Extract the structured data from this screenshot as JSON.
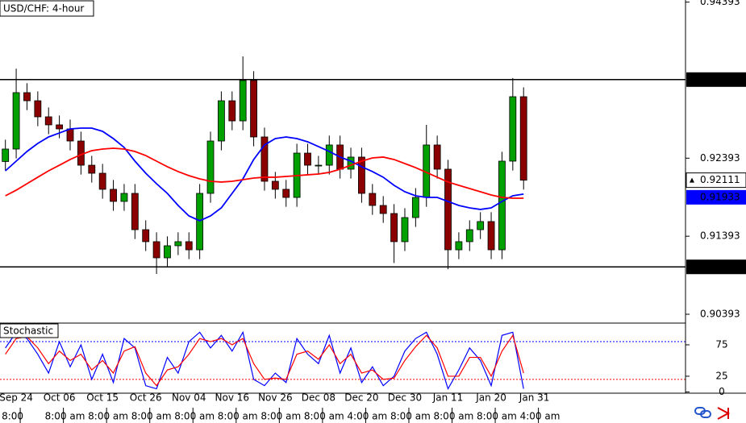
{
  "chart_data": [
    {
      "type": "candlestick",
      "title": "USD/CHF: 4-hour",
      "xlim": [
        -0.5,
        63
      ],
      "ylim": [
        0.9029,
        0.9442
      ],
      "yticks": [
        0.90393,
        0.91393,
        0.92393,
        0.94393
      ],
      "levels": [
        {
          "value": 0.934,
          "label": "0.93400"
        },
        {
          "value": 0.91,
          "label": "0.91000"
        }
      ],
      "colors": {
        "up": "#00a000",
        "down": "#8b0000",
        "outline": "#000000"
      },
      "ohlc": {
        "open": [
          0.9235,
          0.9251,
          0.93233,
          0.93129,
          0.92923,
          0.9282,
          0.92768,
          0.92613,
          0.92303,
          0.922,
          0.91994,
          0.91839,
          0.91942,
          0.91477,
          0.91323,
          0.91116,
          0.91271,
          0.91323,
          0.91219,
          0.91942,
          0.92613,
          0.93129,
          0.92871,
          0.93388,
          0.92665,
          0.92097,
          0.91994,
          0.9189,
          0.92458,
          0.92303,
          0.92303,
          0.92562,
          0.92252,
          0.92407,
          0.91942,
          0.91787,
          0.91684,
          0.91323,
          0.91632,
          0.9189,
          0.92562,
          0.92252,
          0.91219,
          0.91323,
          0.91477,
          0.91581,
          0.91219,
          0.92355,
          0.93181
        ],
        "high": [
          0.9263,
          0.9354,
          0.93353,
          0.93249,
          0.93043,
          0.9294,
          0.92888,
          0.92733,
          0.92423,
          0.9232,
          0.92114,
          0.92062,
          0.92062,
          0.91597,
          0.91443,
          0.91391,
          0.91443,
          0.91443,
          0.92062,
          0.92733,
          0.93249,
          0.93249,
          0.93697,
          0.93508,
          0.92785,
          0.92217,
          0.92114,
          0.92578,
          0.92578,
          0.92423,
          0.92682,
          0.92682,
          0.92527,
          0.92527,
          0.92062,
          0.91907,
          0.91804,
          0.91752,
          0.9201,
          0.9282,
          0.92682,
          0.92372,
          0.91443,
          0.91597,
          0.91701,
          0.91701,
          0.92475,
          0.9342,
          0.93301
        ],
        "low": [
          0.9223,
          0.9239,
          0.93009,
          0.92803,
          0.927,
          0.92648,
          0.92493,
          0.92183,
          0.9208,
          0.91874,
          0.91719,
          0.91719,
          0.91357,
          0.91203,
          0.9091,
          0.90996,
          0.91151,
          0.91099,
          0.91099,
          0.91822,
          0.92493,
          0.92751,
          0.92751,
          0.92545,
          0.91977,
          0.91874,
          0.9177,
          0.9177,
          0.92183,
          0.92183,
          0.92183,
          0.92132,
          0.92132,
          0.91822,
          0.91667,
          0.91564,
          0.9105,
          0.91203,
          0.91512,
          0.9177,
          0.92132,
          0.9097,
          0.91099,
          0.91203,
          0.91357,
          0.91099,
          0.91099,
          0.92235,
          0.91991
        ],
        "close": [
          0.9251,
          0.93233,
          0.93129,
          0.92923,
          0.9282,
          0.92768,
          0.92613,
          0.92303,
          0.922,
          0.91994,
          0.91839,
          0.91942,
          0.91477,
          0.91323,
          0.91116,
          0.91271,
          0.91323,
          0.91219,
          0.91942,
          0.92613,
          0.93129,
          0.92871,
          0.93388,
          0.92665,
          0.92097,
          0.91994,
          0.9189,
          0.92458,
          0.92303,
          0.92303,
          0.92562,
          0.92252,
          0.92407,
          0.91942,
          0.91787,
          0.91684,
          0.91323,
          0.91632,
          0.9189,
          0.92562,
          0.92252,
          0.91219,
          0.91323,
          0.91477,
          0.91581,
          0.91219,
          0.92355,
          0.93181,
          0.92111
        ]
      },
      "lines": [
        {
          "color": "#0000ff",
          "values": [
            0.92231,
            0.92355,
            0.92479,
            0.92582,
            0.92665,
            0.92716,
            0.92768,
            0.92778,
            0.92778,
            0.92737,
            0.92644,
            0.92531,
            0.92355,
            0.922,
            0.92066,
            0.91942,
            0.91787,
            0.91653,
            0.91591,
            0.91653,
            0.91756,
            0.91942,
            0.92128,
            0.92376,
            0.92562,
            0.92644,
            0.92665,
            0.92644,
            0.92603,
            0.92541,
            0.92479,
            0.92407,
            0.92355,
            0.92283,
            0.92221,
            0.92149,
            0.92045,
            0.91963,
            0.91911,
            0.9189,
            0.9189,
            0.91839,
            0.91787,
            0.91756,
            0.91736,
            0.91756,
            0.91839,
            0.91911,
            0.91933
          ]
        },
        {
          "color": "#ff0000",
          "values": [
            0.91911,
            0.91983,
            0.92066,
            0.92149,
            0.92231,
            0.92303,
            0.92376,
            0.92438,
            0.92489,
            0.9251,
            0.9252,
            0.9251,
            0.92479,
            0.92427,
            0.92355,
            0.92283,
            0.92221,
            0.92169,
            0.92128,
            0.92097,
            0.92087,
            0.92097,
            0.92118,
            0.92138,
            0.92149,
            0.92149,
            0.92159,
            0.92169,
            0.9218,
            0.9219,
            0.92211,
            0.92252,
            0.92303,
            0.92355,
            0.92396,
            0.92407,
            0.92376,
            0.92324,
            0.92272,
            0.92211,
            0.92149,
            0.92087,
            0.92045,
            0.92004,
            0.91963,
            0.91921,
            0.9189,
            0.9188,
            0.9188
          ]
        }
      ]
    },
    {
      "type": "line",
      "title": "Stochastic",
      "xlim": [
        -0.5,
        63
      ],
      "ylim": [
        -2,
        107
      ],
      "yticks": [
        0,
        25,
        75
      ],
      "levels": [
        {
          "value": 80,
          "color": "#0000ff"
        },
        {
          "value": 20,
          "color": "#ff0000"
        }
      ],
      "xticks": [
        {
          "value": 1,
          "label": "Sep 24"
        },
        {
          "value": 5,
          "label": "Oct 06"
        },
        {
          "value": 9,
          "label": "Oct 15"
        },
        {
          "value": 13,
          "label": "Oct 26"
        },
        {
          "value": 17,
          "label": "Nov 04"
        },
        {
          "value": 21,
          "label": "Nov 16"
        },
        {
          "value": 25,
          "label": "Nov 26"
        },
        {
          "value": 29,
          "label": "Dec 08"
        },
        {
          "value": 33,
          "label": "Dec 20"
        },
        {
          "value": 37,
          "label": "Dec 30"
        },
        {
          "value": 41,
          "label": "Jan 11"
        },
        {
          "value": 45,
          "label": "Jan 20"
        },
        {
          "value": 49,
          "label": "Jan 31"
        }
      ],
      "xtick_times": [
        "8:00",
        "8:00 am",
        "8:00 am",
        "8:00 am",
        "8:00 am",
        "8:00 am",
        "8:00 am",
        "8:00 am",
        "4:00 am",
        "8:00 am",
        "8:00 am",
        "8:00 am",
        "4:00 am"
      ],
      "series": [
        {
          "color": "#0000ff",
          "values": [
            70,
            95,
            85,
            60,
            30,
            80,
            40,
            75,
            20,
            60,
            15,
            85,
            70,
            10,
            5,
            55,
            30,
            80,
            95,
            70,
            90,
            65,
            95,
            20,
            10,
            30,
            15,
            85,
            60,
            45,
            90,
            30,
            70,
            15,
            40,
            10,
            25,
            65,
            85,
            95,
            60,
            5,
            35,
            70,
            50,
            10,
            90,
            95,
            5
          ]
        },
        {
          "color": "#ff0000",
          "values": [
            60,
            85,
            88,
            70,
            45,
            65,
            50,
            60,
            35,
            50,
            30,
            65,
            72,
            30,
            10,
            35,
            40,
            60,
            85,
            80,
            85,
            75,
            85,
            45,
            20,
            22,
            20,
            60,
            65,
            52,
            75,
            45,
            60,
            30,
            35,
            20,
            22,
            50,
            72,
            90,
            70,
            25,
            25,
            55,
            55,
            25,
            65,
            90,
            30
          ]
        }
      ]
    }
  ]
}
